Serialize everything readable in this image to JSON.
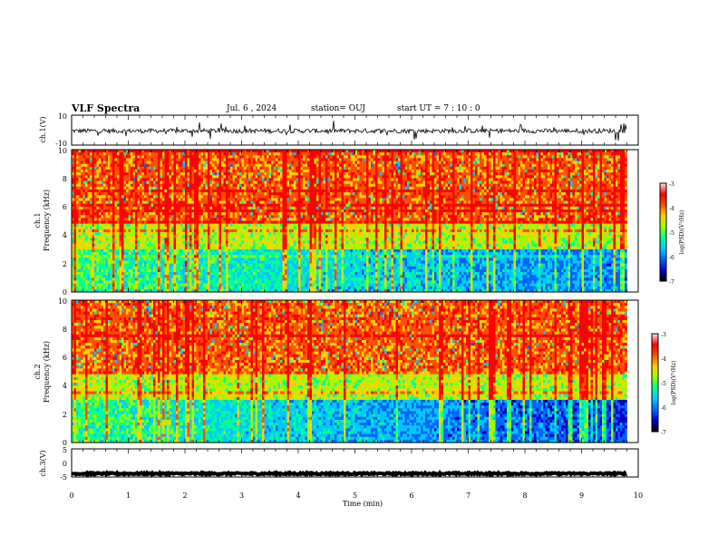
{
  "header": {
    "title": "VLF Spectra",
    "date": "Jul. 6 , 2024",
    "station": "station= OUJ",
    "start": "start UT = 7 : 10 : 0"
  },
  "colors": {
    "colormap": [
      "#000000",
      "#0000c8",
      "#0064ff",
      "#00c8ff",
      "#00ff96",
      "#96ff00",
      "#ffd200",
      "#ff5000",
      "#ff0000",
      "#ffe6e6"
    ],
    "waveform": "#000000",
    "frame": "#000000"
  },
  "chart_data": [
    {
      "type": "line",
      "name": "ch1-waveform",
      "ylabel": "ch.1(V)",
      "ylim": [
        -10,
        10
      ],
      "yticks": [
        "10",
        "-10"
      ],
      "xlim": [
        0,
        10
      ],
      "baseline": -0.5,
      "noise_amplitude": 1.5,
      "spike_amplitude": 6
    },
    {
      "type": "heatmap",
      "name": "ch1-spectrogram",
      "ylabel": "ch.1\nFrequency (kHz)",
      "ylim": [
        0,
        10
      ],
      "yticks": [
        "0",
        "2",
        "4",
        "6",
        "8",
        "10"
      ],
      "xlim": [
        0,
        9.8
      ],
      "colorbar": {
        "label": "log(PSD)(V²/Hz)",
        "range": [
          -7,
          -3
        ],
        "ticks": [
          "-3",
          "-4",
          "-5",
          "-6",
          "-7"
        ]
      }
    },
    {
      "type": "heatmap",
      "name": "ch2-spectrogram",
      "ylabel": "ch.2\nFrequency (kHz)",
      "ylim": [
        0,
        10
      ],
      "yticks": [
        "0",
        "2",
        "4",
        "6",
        "8",
        "10"
      ],
      "xlim": [
        0,
        9.8
      ],
      "colorbar": {
        "label": "log(PSD)(V²/Hz)",
        "range": [
          -7,
          -3
        ],
        "ticks": [
          "-3",
          "-4",
          "-5",
          "-6",
          "-7"
        ]
      }
    },
    {
      "type": "line",
      "name": "ch3-waveform",
      "ylabel": "ch.3(V)",
      "ylim": [
        -5,
        5
      ],
      "yticks": [
        "5",
        "0",
        "-5"
      ],
      "xlim": [
        0,
        10
      ],
      "baseline": -3.8,
      "noise_amplitude": 0.3
    }
  ],
  "xaxis": {
    "label": "Time (min)",
    "ticks": [
      "0",
      "1",
      "2",
      "3",
      "4",
      "5",
      "6",
      "7",
      "8",
      "9",
      "10"
    ],
    "range": [
      0,
      10
    ]
  }
}
